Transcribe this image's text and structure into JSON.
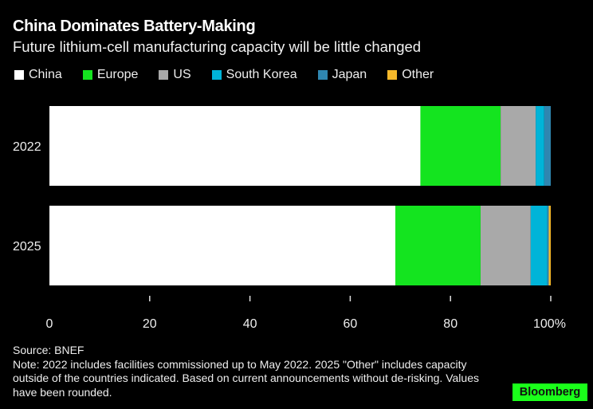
{
  "header": {
    "title": "China Dominates Battery-Making",
    "subtitle": "Future lithium-cell manufacturing capacity will be little changed"
  },
  "footer": {
    "source": "Source: BNEF",
    "note": "Note: 2022 includes facilities commissioned up to May 2022. 2025 \"Other\" includes capacity outside of the countries indicated. Based on current announcements without de-risking. Values have been rounded.",
    "brand": "Bloomberg",
    "brand_color": "#1aff1a"
  },
  "chart_data": {
    "type": "bar",
    "orientation": "horizontal",
    "stacked": true,
    "title": "China Dominates Battery-Making",
    "subtitle": "Future lithium-cell manufacturing capacity will be little changed",
    "xlabel": "",
    "ylabel": "",
    "xlim": [
      0,
      100
    ],
    "x_ticks": [
      "0",
      "20",
      "40",
      "60",
      "80",
      "100%"
    ],
    "x_tick_values": [
      0,
      20,
      40,
      60,
      80,
      100
    ],
    "grid": false,
    "legend_position": "top-left",
    "categories": [
      "2022",
      "2025"
    ],
    "series": [
      {
        "name": "China",
        "color": "#ffffff",
        "values": [
          74,
          69
        ]
      },
      {
        "name": "Europe",
        "color": "#14e41f",
        "values": [
          16,
          17
        ]
      },
      {
        "name": "US",
        "color": "#a9a9a9",
        "values": [
          7,
          10
        ]
      },
      {
        "name": "South Korea",
        "color": "#00b4d8",
        "values": [
          1.7,
          3.3
        ]
      },
      {
        "name": "Japan",
        "color": "#2f86b0",
        "values": [
          1.3,
          0.3
        ]
      },
      {
        "name": "Other",
        "color": "#f5b82a",
        "values": [
          0,
          0.4
        ]
      }
    ]
  }
}
